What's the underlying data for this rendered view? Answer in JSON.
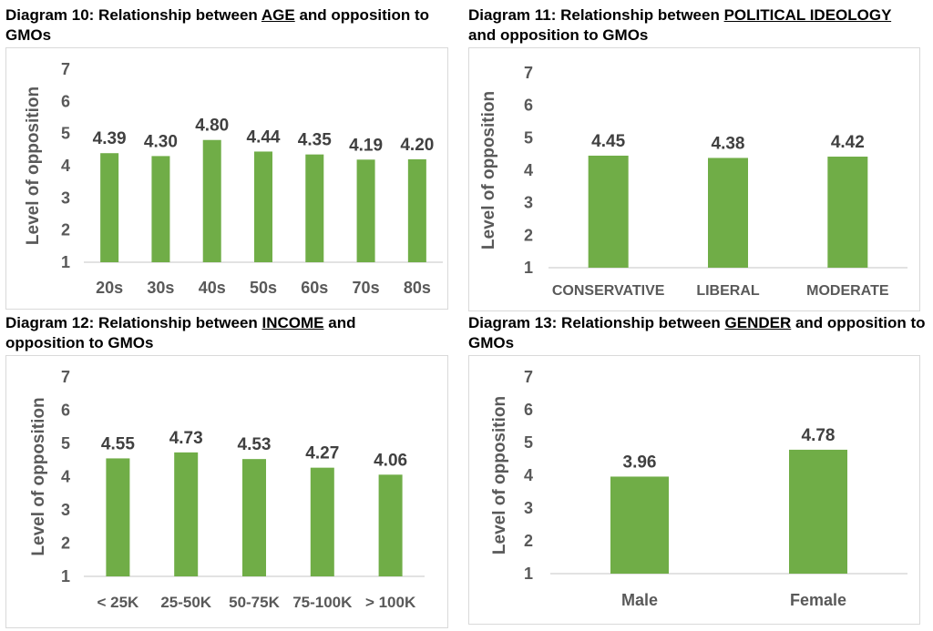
{
  "colors": {
    "bar": "#70ad47",
    "axis": "#d9d9d9",
    "text": "#595959",
    "label": "#404040"
  },
  "chart_data": [
    {
      "type": "bar",
      "title_prefix": "Diagram 10: Relationship between ",
      "title_key": "AGE",
      "title_suffix": " and opposition to GMOs",
      "ylabel": "Level of opposition",
      "ylim": [
        1,
        7
      ],
      "yticks": [
        "1",
        "2",
        "3",
        "4",
        "5",
        "6",
        "7"
      ],
      "categories": [
        "20s",
        "30s",
        "40s",
        "50s",
        "60s",
        "70s",
        "80s"
      ],
      "values": [
        4.39,
        4.3,
        4.8,
        4.44,
        4.35,
        4.19,
        4.2
      ],
      "data_labels": [
        "4.39",
        "4.30",
        "4.80",
        "4.44",
        "4.35",
        "4.19",
        "4.20"
      ]
    },
    {
      "type": "bar",
      "title_prefix": "Diagram 11: Relationship between ",
      "title_key": "POLITICAL IDEOLOGY",
      "title_suffix": " and opposition to GMOs",
      "ylabel": "Level of opposition",
      "ylim": [
        1,
        7
      ],
      "yticks": [
        "1",
        "2",
        "3",
        "4",
        "5",
        "6",
        "7"
      ],
      "categories": [
        "CONSERVATIVE",
        "LIBERAL",
        "MODERATE"
      ],
      "values": [
        4.45,
        4.38,
        4.42
      ],
      "data_labels": [
        "4.45",
        "4.38",
        "4.42"
      ]
    },
    {
      "type": "bar",
      "title_prefix": "Diagram 12: Relationship between ",
      "title_key": "INCOME",
      "title_suffix": " and opposition to GMOs",
      "ylabel": "Level of opposition",
      "ylim": [
        1,
        7
      ],
      "yticks": [
        "1",
        "2",
        "3",
        "4",
        "5",
        "6",
        "7"
      ],
      "categories": [
        "< 25K",
        "25-50K",
        "50-75K",
        "75-100K",
        "> 100K"
      ],
      "values": [
        4.55,
        4.73,
        4.53,
        4.27,
        4.06
      ],
      "data_labels": [
        "4.55",
        "4.73",
        "4.53",
        "4.27",
        "4.06"
      ]
    },
    {
      "type": "bar",
      "title_prefix": "Diagram 13: Relationship between ",
      "title_key": "GENDER",
      "title_suffix": " and opposition to GMOs",
      "ylabel": "Level of opposition",
      "ylim": [
        1,
        7
      ],
      "yticks": [
        "1",
        "2",
        "3",
        "4",
        "5",
        "6",
        "7"
      ],
      "categories": [
        "Male",
        "Female"
      ],
      "values": [
        3.96,
        4.78
      ],
      "data_labels": [
        "3.96",
        "4.78"
      ]
    }
  ]
}
